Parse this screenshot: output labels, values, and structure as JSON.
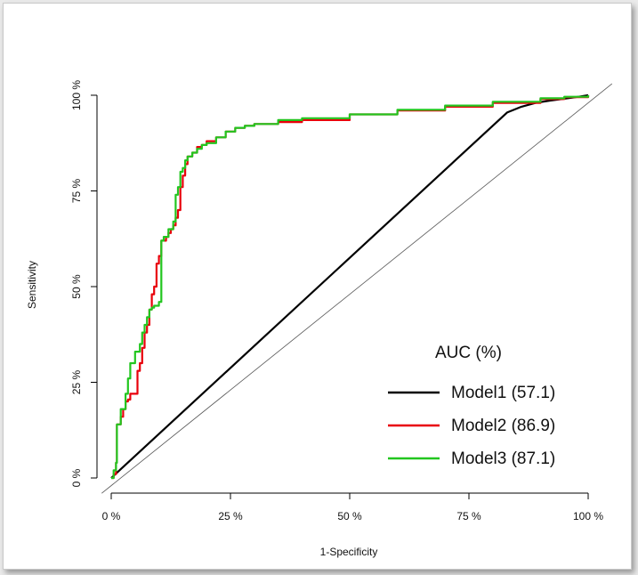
{
  "chart_data": {
    "type": "line",
    "title": "",
    "xlabel": "1-Specificity",
    "ylabel": "Sensitivity",
    "xlim": [
      0,
      100
    ],
    "ylim": [
      0,
      100
    ],
    "x_ticks": [
      0,
      25,
      50,
      75,
      100
    ],
    "x_tick_labels": [
      "0 %",
      "25 %",
      "50 %",
      "75 %",
      "100 %"
    ],
    "y_ticks": [
      0,
      25,
      50,
      75,
      100
    ],
    "y_tick_labels": [
      "0 %",
      "25 %",
      "50 %",
      "75 %",
      "100 %"
    ],
    "grid": false,
    "legend_position": "bottom-right",
    "legend_title": "AUC (%)",
    "reference_line": {
      "x": [
        -2,
        105
      ],
      "y": [
        -4,
        103
      ],
      "color": "#555555"
    },
    "series": [
      {
        "name": "Model1 (57.1)",
        "color": "#000000",
        "x": [
          0,
          83,
          86,
          89,
          92,
          95,
          98,
          100
        ],
        "y": [
          0,
          95.5,
          97,
          98,
          98.6,
          99.1,
          99.6,
          100
        ]
      },
      {
        "name": "Model2 (86.9)",
        "color": "#e8000b",
        "x": [
          0,
          0.5,
          1,
          1.2,
          2,
          2.5,
          3,
          3.5,
          4,
          5,
          5.5,
          6,
          6.5,
          7,
          7.5,
          8,
          8.5,
          9,
          9.5,
          10,
          10.5,
          11,
          11.5,
          12,
          12.5,
          13,
          13.5,
          14,
          14.5,
          15,
          15.5,
          16,
          17,
          18,
          19,
          20,
          22,
          24,
          26,
          28,
          30,
          35,
          40,
          50,
          60,
          70,
          80,
          90,
          95,
          100
        ],
        "y": [
          0,
          1,
          4,
          14,
          16,
          18,
          20,
          20.5,
          22,
          22,
          28,
          30,
          34,
          38,
          40,
          44,
          48,
          50,
          56,
          58,
          62,
          62,
          63,
          64,
          65,
          66,
          68,
          70,
          76,
          79,
          82,
          84,
          85,
          86.5,
          87,
          88,
          89,
          90.5,
          91.5,
          92,
          92.5,
          93,
          93.5,
          95,
          96,
          97,
          98,
          99,
          99.5,
          100
        ]
      },
      {
        "name": "Model3 (87.1)",
        "color": "#22c61f",
        "x": [
          0,
          0.5,
          1,
          1.2,
          2,
          3,
          3.5,
          4,
          5,
          6,
          6.5,
          7,
          7.5,
          8,
          8.5,
          9,
          10,
          10.5,
          11,
          12,
          13,
          13.5,
          14,
          14.5,
          15,
          15.5,
          16,
          17,
          18,
          19,
          20,
          22,
          24,
          26,
          28,
          30,
          35,
          40,
          50,
          60,
          70,
          80,
          90,
          95,
          100
        ],
        "y": [
          0,
          2,
          4,
          14,
          18,
          22,
          26,
          30,
          33,
          35,
          38,
          40,
          42,
          44,
          44.5,
          45,
          46,
          62,
          63,
          65,
          67,
          74,
          76,
          80,
          81,
          83,
          84,
          85,
          86,
          87,
          87.5,
          89,
          90.5,
          91.5,
          92,
          92.5,
          93.5,
          94,
          95,
          96.2,
          97.3,
          98.3,
          99.2,
          99.6,
          100
        ]
      }
    ]
  }
}
